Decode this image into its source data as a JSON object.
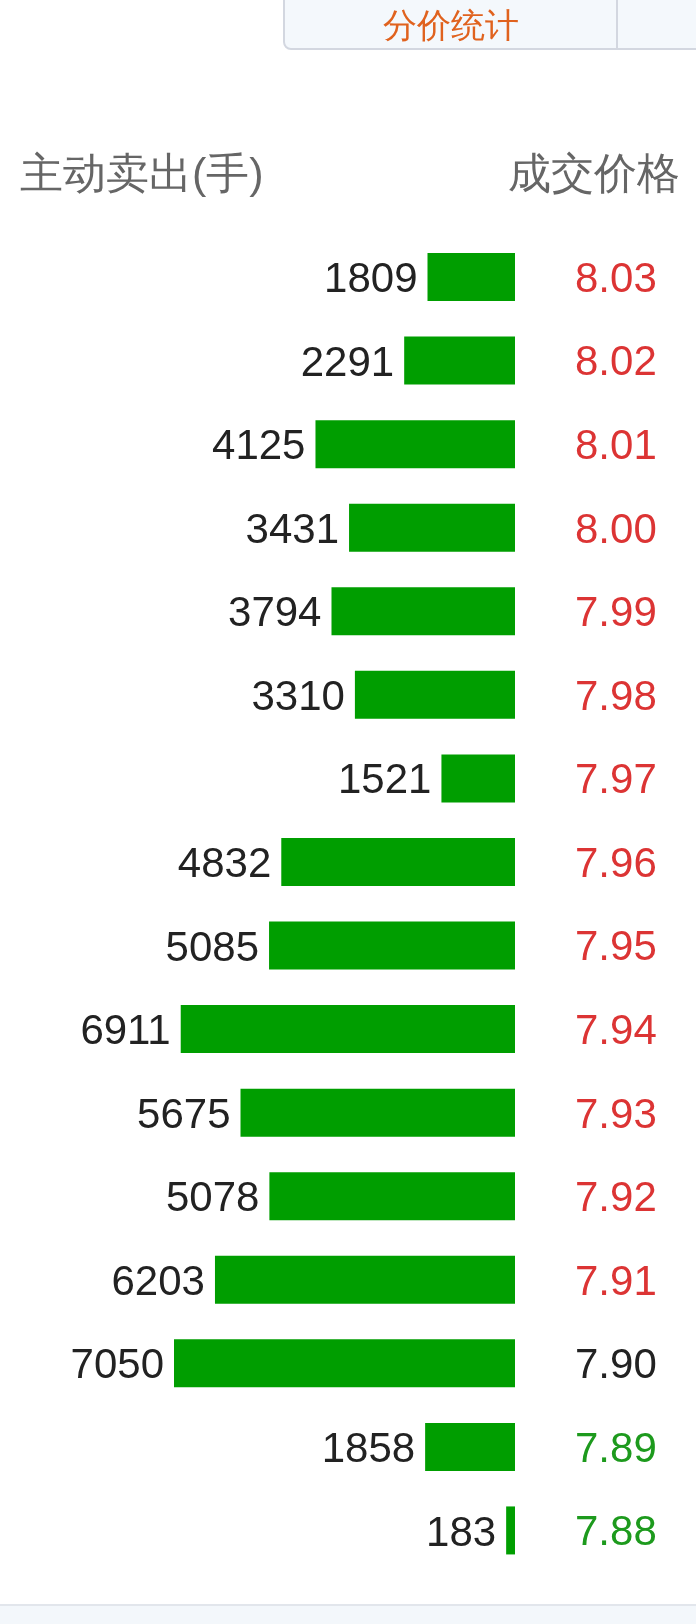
{
  "chart_data": {
    "type": "bar",
    "orientation": "horizontal",
    "title": "分价统计",
    "xlabel": "主动卖出(手)",
    "ylabel": "成交价格",
    "categories": [
      "8.03",
      "8.02",
      "8.01",
      "8.00",
      "7.99",
      "7.98",
      "7.97",
      "7.96",
      "7.95",
      "7.94",
      "7.93",
      "7.92",
      "7.91",
      "7.90",
      "7.89",
      "7.88"
    ],
    "values": [
      1809,
      2291,
      4125,
      3431,
      3794,
      3310,
      1521,
      4832,
      5085,
      6911,
      5675,
      5078,
      6203,
      7050,
      1858,
      183
    ],
    "color": "#009e00",
    "xlim": [
      7050,
      0
    ],
    "data_labels": true,
    "tick_labels": "y"
  }
}
